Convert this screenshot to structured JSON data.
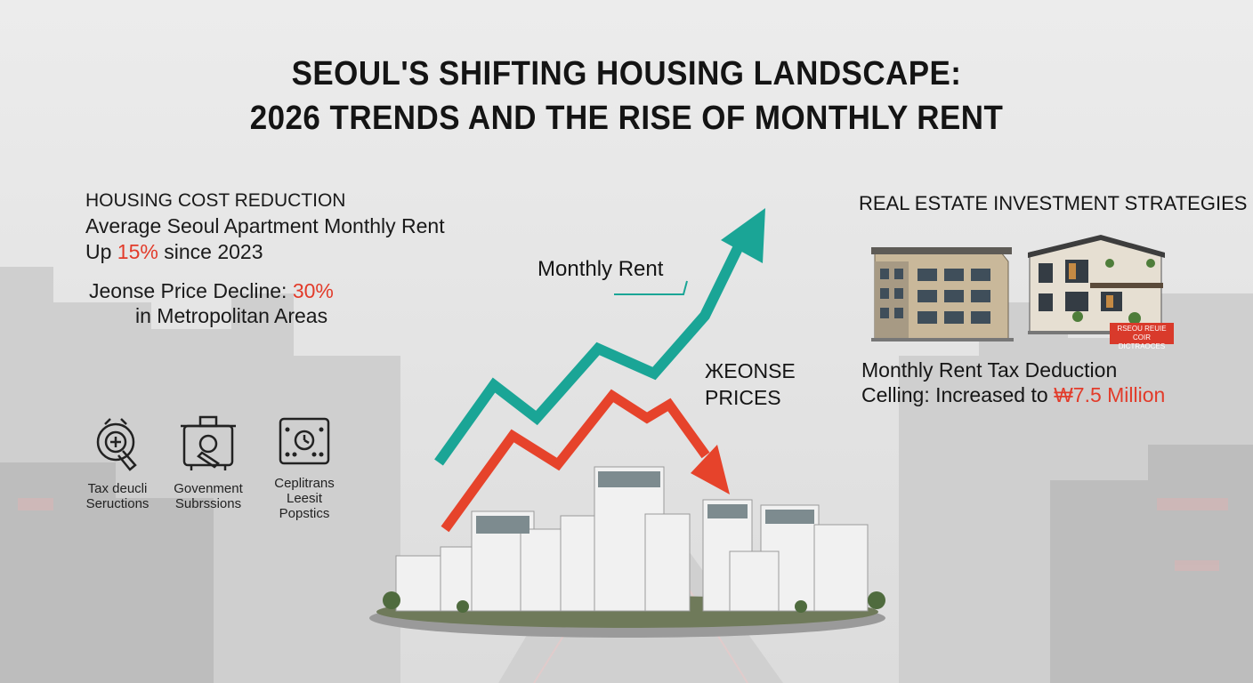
{
  "title": {
    "line1": "SEOUL'S SHIFTING HOUSING LANDSCAPE:",
    "line2": "2026 TRENDS AND THE RISE OF MONTHLY RENT"
  },
  "left_stats": {
    "heading": "HOUSING COST REDUCTION",
    "rent_line1": "Average Seoul Apartment Monthly Rent",
    "rent_prefix": "Up ",
    "rent_value": "15%",
    "rent_suffix": " since 2023",
    "jeonse_prefix": "Jeonse Price Decline: ",
    "jeonse_value": "30%",
    "jeonse_line2": "in Metropolitan Areas"
  },
  "icons": [
    {
      "icon": "magnifier-tax-icon",
      "line1": "Tax deucli",
      "line2": "Seructions"
    },
    {
      "icon": "cooking-pot-subsidy-icon",
      "line1": "Govenment",
      "line2": "Subrssions"
    },
    {
      "icon": "id-card-clock-icon",
      "line1": "Ceplitrans",
      "line2": "Leesit",
      "line3": "Popstics"
    }
  ],
  "chart_labels": {
    "monthly_rent": "Monthly Rent",
    "jeonse_line1": "ЖEONSE",
    "jeonse_line2": "PRICES"
  },
  "right_section": {
    "heading": "REAL ESTATE INVESTMENT STRATEGIES",
    "badge_line1": "RSEOU REUIE",
    "badge_line2": "COIR DICTRAOCES",
    "tax_line1": "Monthly Rent Tax Deduction",
    "tax_prefix": "Celling: Increased to ",
    "tax_value": "₩7.5 Million"
  },
  "colors": {
    "rent_arrow": "#1aa596",
    "jeonse_arrow": "#e6432b",
    "highlight_red": "#e23b2a",
    "background": "#e7e7e7"
  }
}
